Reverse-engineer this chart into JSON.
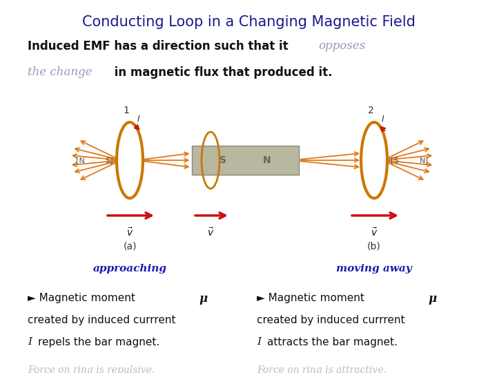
{
  "background_color": "#ffffff",
  "title": "Conducting Loop in a Changing Magnetic Field",
  "title_color": "#1a1a8c",
  "title_fontsize": 15,
  "label_approaching": "approaching",
  "label_moving_away": "moving away",
  "label_color": "#1a1aaa",
  "label_fontsize": 11,
  "bullet_color": "#111111",
  "bullet_fontsize": 11,
  "force1": "Force on ring is repulsive.",
  "force2": "Force on ring is attractive.",
  "force_color": "#BBBBCC",
  "force_fontsize": 10,
  "ring_color": "#CC7700",
  "magnet_face": "#B8B8A0",
  "magnet_edge": "#888877",
  "arrow_color": "#CC1111",
  "flux_color": "#E07818",
  "text_color_opposes": "#9999BB",
  "text_color_change": "#9999BB"
}
